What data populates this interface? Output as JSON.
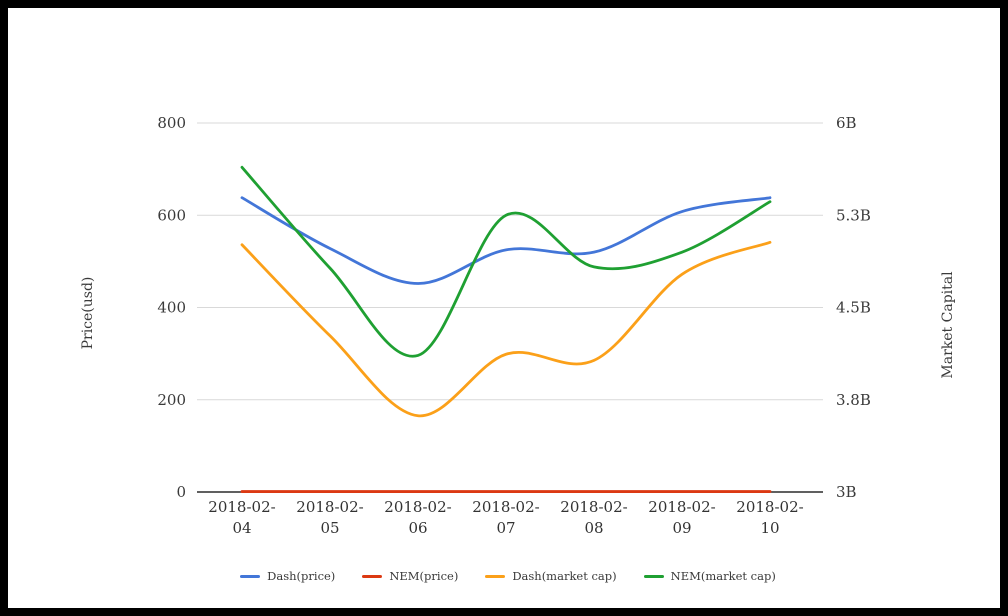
{
  "page": {
    "background": "#ffffff",
    "frame_color": "#000000",
    "grid_color": "#d9d9d9",
    "axis_line_color": "#2b2b2b",
    "tick_label_color": "#3a3a3a"
  },
  "chart_data": {
    "type": "line",
    "smooth": true,
    "grid": true,
    "legend_position": "bottom",
    "x_categories": [
      "2018-02-04",
      "2018-02-05",
      "2018-02-06",
      "2018-02-07",
      "2018-02-08",
      "2018-02-09",
      "2018-02-10"
    ],
    "left_axis": {
      "title": "Price(usd)",
      "min": 0,
      "max": 800,
      "ticks": [
        0,
        200,
        400,
        600,
        800
      ],
      "tick_labels": [
        "0",
        "200",
        "400",
        "600",
        "800"
      ]
    },
    "right_axis": {
      "title": "Market Capital",
      "min": 3,
      "max": 6,
      "ticks": [
        3,
        3.75,
        4.5,
        5.25,
        6
      ],
      "tick_labels": [
        "3B",
        "3.8B",
        "4.5B",
        "5.3B",
        "6B"
      ]
    },
    "series": [
      {
        "name": "Dash(price)",
        "axis": "left",
        "color": "#4376d8",
        "values": [
          638,
          528,
          452,
          525,
          520,
          608,
          638
        ]
      },
      {
        "name": "NEM(price)",
        "axis": "left",
        "color": "#dc3912",
        "values": [
          1,
          1,
          1,
          1,
          1,
          1,
          1
        ]
      },
      {
        "name": "Dash(market cap)",
        "axis": "right",
        "color": "#fba019",
        "values": [
          5.01,
          4.27,
          3.62,
          4.12,
          4.07,
          4.77,
          5.03
        ]
      },
      {
        "name": "NEM(market cap)",
        "axis": "right",
        "color": "#1fa032",
        "values": [
          5.64,
          4.82,
          4.11,
          5.25,
          4.83,
          4.95,
          5.36
        ]
      }
    ]
  }
}
